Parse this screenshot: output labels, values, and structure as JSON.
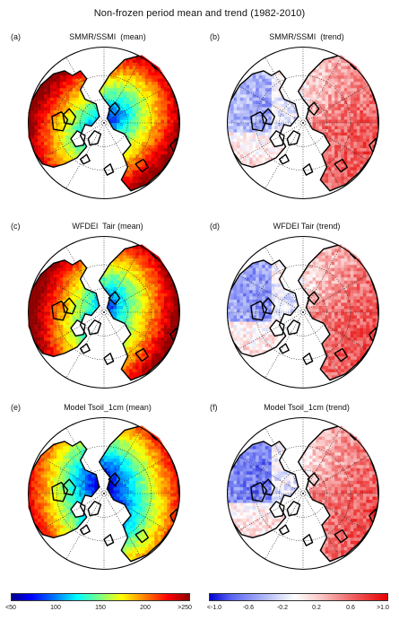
{
  "figure": {
    "title": "Non-frozen period  mean and trend (1982-2010)"
  },
  "panels": [
    {
      "letter": "(a)",
      "title": "SMMR/SSMI  (mean)",
      "kind": "mean",
      "variant": 0
    },
    {
      "letter": "(b)",
      "title": "SMMR/SSMI  (trend)",
      "kind": "trend",
      "variant": 0
    },
    {
      "letter": "(c)",
      "title": "WFDEI  Tair (mean)",
      "kind": "mean",
      "variant": 1
    },
    {
      "letter": "(d)",
      "title": "WFDEI Tair (trend)",
      "kind": "trend",
      "variant": 1
    },
    {
      "letter": "(e)",
      "title": "Model Tsoil_1cm (mean)",
      "kind": "mean",
      "variant": 2
    },
    {
      "letter": "(f)",
      "title": "Model Tsoil_1cm (trend)",
      "kind": "trend",
      "variant": 2
    }
  ],
  "colorbars": {
    "mean": {
      "ticks": [
        "<50",
        "100",
        "150",
        "200",
        ">250"
      ]
    },
    "trend": {
      "ticks": [
        "<-1.0",
        "-0.6",
        "-0.2",
        "0.2",
        "0.6",
        ">1.0"
      ]
    }
  },
  "colors": {
    "coastline": "#000000",
    "graticule": "#222222",
    "ocean": "#ffffff"
  }
}
